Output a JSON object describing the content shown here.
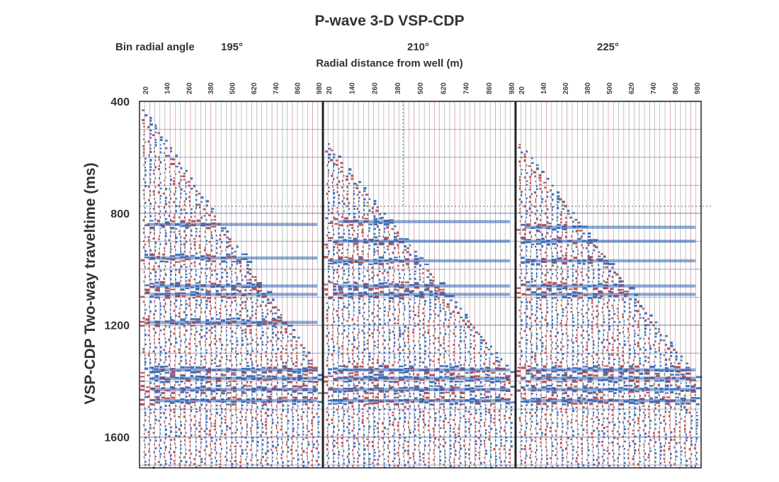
{
  "chart_data": {
    "type": "seismic-wiggle",
    "title": "P-wave 3-D VSP-CDP",
    "angle_prefix": "Bin radial angle",
    "ylabel": "VSP-CDP Two-way traveltime (ms)",
    "xlabel": "Radial distance from well (m)",
    "ylim": [
      400,
      1710
    ],
    "yticks": [
      400,
      800,
      1200,
      1600
    ],
    "horizontal_gridlines_every_ms": 100,
    "grid": true,
    "panels": [
      {
        "angle_label": "195°",
        "tick_labels": [
          "20",
          "140",
          "260",
          "380",
          "500",
          "620",
          "740",
          "860",
          "980"
        ],
        "first_arrival_ms": [
          [
            20,
            405
          ],
          [
            980,
            1380
          ]
        ],
        "major_reflection_ms": [
          840,
          960,
          1060,
          1090,
          1190,
          1360,
          1390,
          1430,
          1470
        ]
      },
      {
        "angle_label": "210°",
        "tick_labels": [
          "20",
          "140",
          "260",
          "380",
          "500",
          "620",
          "740",
          "860",
          "980"
        ],
        "first_arrival_ms": [
          [
            20,
            530
          ],
          [
            980,
            1390
          ]
        ],
        "major_reflection_ms": [
          830,
          900,
          970,
          1060,
          1090,
          1360,
          1390,
          1430,
          1470
        ]
      },
      {
        "angle_label": "225°",
        "tick_labels": [
          "20",
          "140",
          "260",
          "380",
          "500",
          "620",
          "740",
          "860",
          "980"
        ],
        "first_arrival_ms": [
          [
            20,
            530
          ],
          [
            980,
            1410
          ]
        ],
        "major_reflection_ms": [
          850,
          900,
          970,
          1060,
          1090,
          1360,
          1390,
          1430,
          1470
        ]
      }
    ],
    "colors": {
      "positive": "#2e62b4",
      "negative": "#b0464a",
      "trace": "#7b7b7b",
      "grid": "#8f98c0",
      "frame": "#222222",
      "reference": "#666666"
    }
  }
}
